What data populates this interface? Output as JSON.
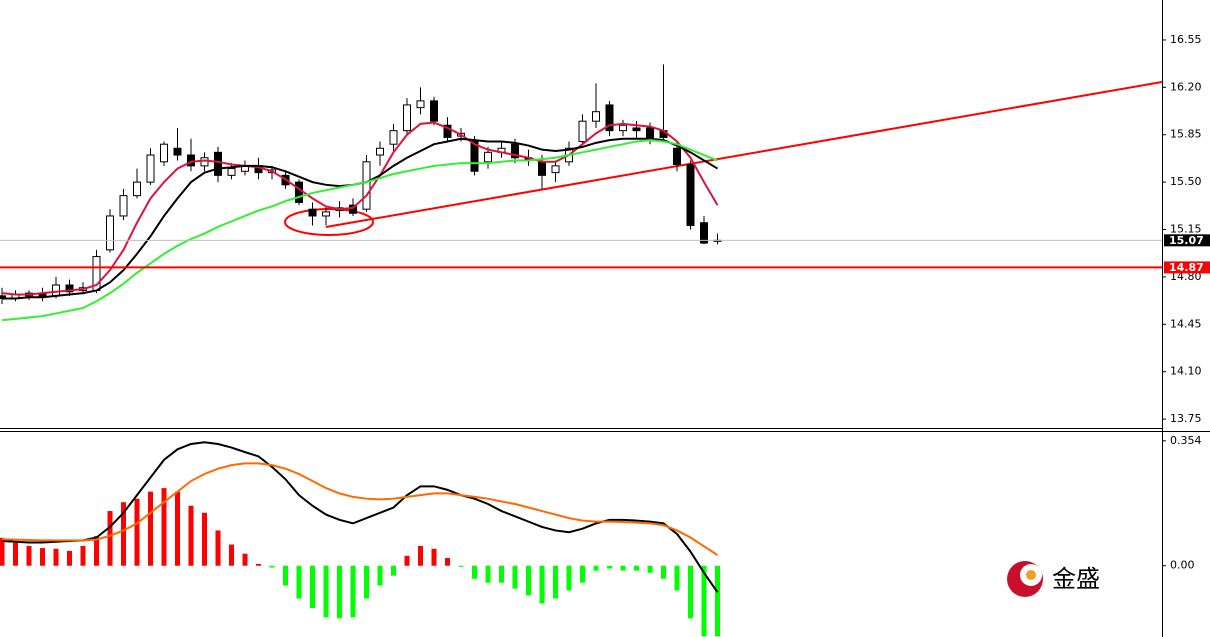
{
  "chart_data": [
    {
      "type": "candlestick",
      "open": [
        14.66,
        14.64,
        14.66,
        14.68,
        14.66,
        14.74,
        14.7,
        14.7,
        15.0,
        15.25,
        15.4,
        15.5,
        15.65,
        15.75,
        15.7,
        15.62,
        15.72,
        15.55,
        15.58,
        15.62,
        15.57,
        15.55,
        15.5,
        15.3,
        15.25,
        15.29,
        15.33,
        15.3,
        15.7,
        15.78,
        15.88,
        16.05,
        16.1,
        15.92,
        15.84,
        15.8,
        15.65,
        15.72,
        15.78,
        15.68,
        15.65,
        15.57,
        15.65,
        15.8,
        15.95,
        16.07,
        15.88,
        15.9,
        15.9,
        15.88,
        15.75,
        15.63,
        15.2,
        15.07
      ],
      "high": [
        14.72,
        14.7,
        14.7,
        14.72,
        14.8,
        14.78,
        14.76,
        15.0,
        15.3,
        15.45,
        15.6,
        15.75,
        15.8,
        15.9,
        15.82,
        15.72,
        15.76,
        15.64,
        15.66,
        15.68,
        15.62,
        15.58,
        15.52,
        15.35,
        15.32,
        15.36,
        15.38,
        15.7,
        15.8,
        15.93,
        16.12,
        16.2,
        16.13,
        15.98,
        15.9,
        15.84,
        15.76,
        15.8,
        15.82,
        15.74,
        15.7,
        15.66,
        15.8,
        16.0,
        16.23,
        16.1,
        15.96,
        15.95,
        15.94,
        16.37,
        15.8,
        15.66,
        15.25,
        15.12
      ],
      "low": [
        14.6,
        14.62,
        14.63,
        14.62,
        14.64,
        14.66,
        14.67,
        14.68,
        14.98,
        15.22,
        15.38,
        15.48,
        15.62,
        15.66,
        15.58,
        15.58,
        15.5,
        15.52,
        15.55,
        15.52,
        15.52,
        15.45,
        15.33,
        15.18,
        15.18,
        15.24,
        15.25,
        15.28,
        15.62,
        15.72,
        15.85,
        16.0,
        15.92,
        15.8,
        15.8,
        15.55,
        15.6,
        15.68,
        15.64,
        15.62,
        15.45,
        15.5,
        15.62,
        15.78,
        15.9,
        15.84,
        15.84,
        15.82,
        15.78,
        15.8,
        15.58,
        15.15,
        15.04,
        15.04
      ],
      "close": [
        14.64,
        14.67,
        14.68,
        14.65,
        14.74,
        14.69,
        14.72,
        14.95,
        15.25,
        15.4,
        15.5,
        15.7,
        15.78,
        15.7,
        15.62,
        15.68,
        15.55,
        15.6,
        15.62,
        15.57,
        15.59,
        15.48,
        15.35,
        15.25,
        15.28,
        15.31,
        15.27,
        15.65,
        15.75,
        15.88,
        16.07,
        16.1,
        15.95,
        15.83,
        15.86,
        15.58,
        15.72,
        15.75,
        15.68,
        15.66,
        15.55,
        15.62,
        15.75,
        15.95,
        16.02,
        15.88,
        15.92,
        15.88,
        15.82,
        15.83,
        15.63,
        15.18,
        15.05,
        15.07
      ],
      "up_color": "#ffffff",
      "down_color": "#000000",
      "series": [
        {
          "color": "#dc143c",
          "values": [
            14.68,
            14.67,
            14.67,
            14.68,
            14.69,
            14.7,
            14.71,
            14.74,
            14.85,
            15.0,
            15.2,
            15.38,
            15.5,
            15.6,
            15.65,
            15.66,
            15.65,
            15.63,
            15.62,
            15.61,
            15.58,
            15.52,
            15.45,
            15.38,
            15.32,
            15.3,
            15.31,
            15.4,
            15.55,
            15.72,
            15.85,
            15.93,
            15.94,
            15.9,
            15.85,
            15.78,
            15.74,
            15.72,
            15.7,
            15.68,
            15.65,
            15.65,
            15.7,
            15.78,
            15.86,
            15.92,
            15.93,
            15.92,
            15.91,
            15.88,
            15.8,
            15.68,
            15.5,
            15.33
          ]
        },
        {
          "color": "#000000",
          "values": [
            14.64,
            14.64,
            14.65,
            14.65,
            14.66,
            14.67,
            14.68,
            14.7,
            14.76,
            14.85,
            14.97,
            15.1,
            15.25,
            15.38,
            15.5,
            15.57,
            15.6,
            15.61,
            15.62,
            15.62,
            15.61,
            15.58,
            15.54,
            15.5,
            15.48,
            15.47,
            15.48,
            15.5,
            15.55,
            15.62,
            15.68,
            15.73,
            15.78,
            15.8,
            15.82,
            15.81,
            15.8,
            15.8,
            15.79,
            15.77,
            15.74,
            15.73,
            15.74,
            15.76,
            15.79,
            15.81,
            15.82,
            15.82,
            15.82,
            15.81,
            15.77,
            15.72,
            15.66,
            15.6
          ]
        },
        {
          "color": "#33ee33",
          "values": [
            14.48,
            14.49,
            14.5,
            14.51,
            14.53,
            14.55,
            14.57,
            14.62,
            14.68,
            14.75,
            14.83,
            14.9,
            14.97,
            15.03,
            15.08,
            15.12,
            15.17,
            15.21,
            15.25,
            15.29,
            15.32,
            15.36,
            15.39,
            15.42,
            15.44,
            15.46,
            15.48,
            15.5,
            15.53,
            15.56,
            15.58,
            15.6,
            15.62,
            15.63,
            15.64,
            15.64,
            15.64,
            15.65,
            15.66,
            15.66,
            15.67,
            15.68,
            15.7,
            15.72,
            15.74,
            15.76,
            15.78,
            15.8,
            15.81,
            15.8,
            15.78,
            15.74,
            15.7,
            15.66
          ]
        }
      ],
      "ylim": [
        13.684,
        16.845
      ],
      "yticks": [
        16.55,
        {
          "value": 16.2,
          "label": "16.20"
        },
        15.85,
        {
          "value": 15.5,
          "label": "15.50"
        },
        15.15,
        {
          "value": 14.8,
          "label": "14.80"
        },
        14.45,
        {
          "value": 14.1,
          "label": "14.10"
        },
        13.75
      ],
      "price_lines": [
        {
          "value": 15.07,
          "color": "#c0c0c0",
          "label_color": "#000000"
        },
        {
          "value": 14.87,
          "color": "#ff0000",
          "label_color": "#ff0000"
        }
      ]
    },
    {
      "type": "macd",
      "histogram": {
        "pos_color": "#ff0000",
        "neg_color": "#00ff00",
        "values": [
          0.079,
          0.065,
          0.056,
          0.05,
          0.048,
          0.042,
          0.056,
          0.084,
          0.155,
          0.18,
          0.19,
          0.21,
          0.22,
          0.21,
          0.17,
          0.15,
          0.1,
          0.06,
          0.034,
          0.005,
          -0.005,
          -0.056,
          -0.093,
          -0.12,
          -0.146,
          -0.149,
          -0.146,
          -0.093,
          -0.056,
          -0.028,
          0.028,
          0.056,
          0.048,
          0.022,
          -0.003,
          -0.037,
          -0.048,
          -0.048,
          -0.065,
          -0.084,
          -0.107,
          -0.093,
          -0.07,
          -0.048,
          -0.014,
          -0.008,
          -0.014,
          -0.014,
          -0.02,
          -0.037,
          -0.07,
          -0.149,
          -0.2,
          -0.2
        ]
      },
      "series": [
        {
          "color": "#000000",
          "values": [
            0.07,
            0.068,
            0.066,
            0.066,
            0.068,
            0.07,
            0.072,
            0.08,
            0.11,
            0.15,
            0.2,
            0.25,
            0.3,
            0.33,
            0.345,
            0.35,
            0.345,
            0.335,
            0.322,
            0.31,
            0.28,
            0.245,
            0.2,
            0.17,
            0.145,
            0.13,
            0.12,
            0.135,
            0.15,
            0.165,
            0.2,
            0.225,
            0.225,
            0.215,
            0.2,
            0.19,
            0.175,
            0.155,
            0.14,
            0.125,
            0.11,
            0.1,
            0.095,
            0.105,
            0.12,
            0.13,
            0.13,
            0.128,
            0.125,
            0.12,
            0.09,
            0.04,
            -0.02,
            -0.075
          ]
        },
        {
          "color": "#ff6a00",
          "values": [
            0.075,
            0.074,
            0.073,
            0.072,
            0.072,
            0.072,
            0.072,
            0.074,
            0.085,
            0.1,
            0.12,
            0.15,
            0.18,
            0.21,
            0.24,
            0.26,
            0.275,
            0.285,
            0.29,
            0.29,
            0.285,
            0.275,
            0.26,
            0.24,
            0.22,
            0.205,
            0.195,
            0.19,
            0.188,
            0.19,
            0.195,
            0.2,
            0.205,
            0.205,
            0.2,
            0.195,
            0.19,
            0.182,
            0.175,
            0.165,
            0.155,
            0.145,
            0.135,
            0.128,
            0.125,
            0.125,
            0.124,
            0.122,
            0.12,
            0.115,
            0.1,
            0.08,
            0.055,
            0.03
          ]
        }
      ],
      "ylim": [
        -0.202,
        0.379
      ],
      "yticks": [
        0.354,
        {
          "value": 0,
          "label": "0.00"
        }
      ]
    }
  ],
  "logo_text": "金盛"
}
